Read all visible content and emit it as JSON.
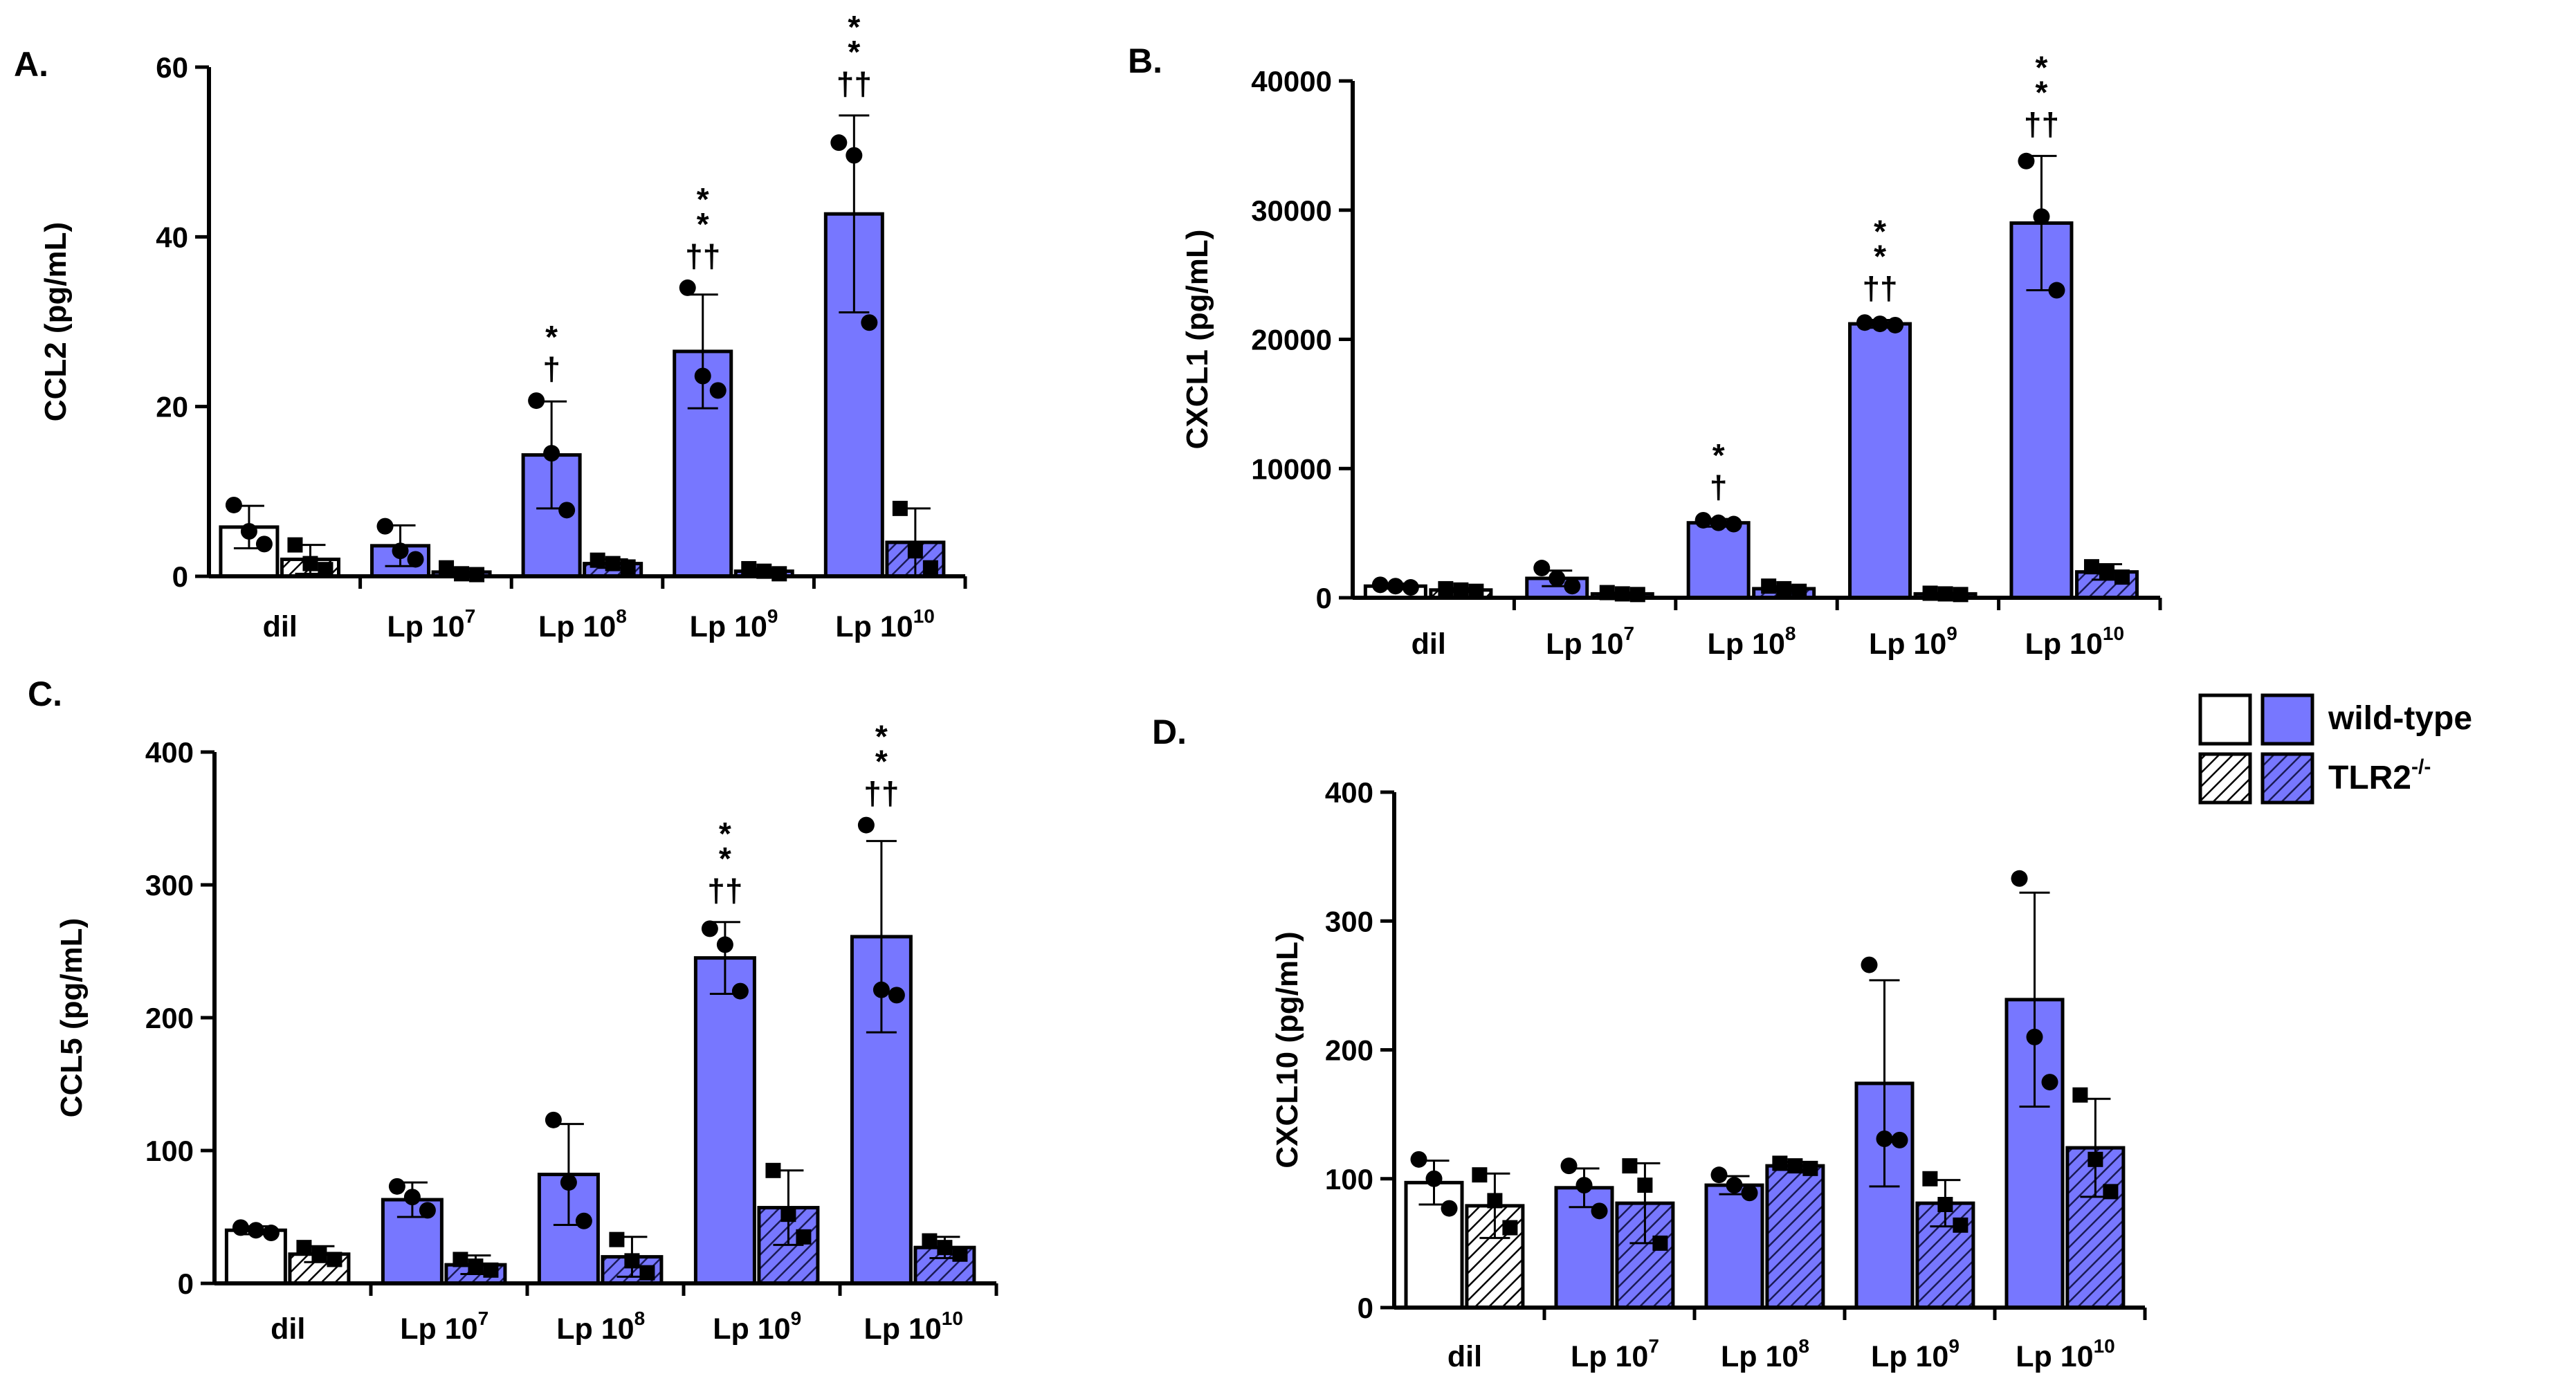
{
  "colors": {
    "wild_type_fill": "#7777ff",
    "white_fill": "#ffffff",
    "stroke": "#000000"
  },
  "legend": {
    "wild_type_label": "wild-type",
    "tlr2_label_base": "TLR2",
    "tlr2_label_sup": "-/-"
  },
  "chart_data": [
    {
      "panel": "A.",
      "type": "bar",
      "ylabel": "CCL2 (pg/mL)",
      "ylim": [
        0,
        60
      ],
      "yticks": [
        0,
        20,
        40,
        60
      ],
      "categories": [
        {
          "base": "dil",
          "sup": ""
        },
        {
          "base": "Lp 10",
          "sup": "7"
        },
        {
          "base": "Lp 10",
          "sup": "8"
        },
        {
          "base": "Lp 10",
          "sup": "9"
        },
        {
          "base": "Lp 10",
          "sup": "10"
        }
      ],
      "series": [
        {
          "name": "wild-type",
          "values": [
            5.8,
            3.6,
            14.3,
            26.5,
            42.7
          ],
          "sd": [
            2.5,
            2.4,
            6.3,
            6.7,
            11.6
          ],
          "points": [
            [
              8.4,
              5.3,
              3.8
            ],
            [
              5.9,
              3.0,
              2.0
            ],
            [
              20.7,
              14.5,
              7.8
            ],
            [
              34.0,
              23.6,
              21.9
            ],
            [
              51.1,
              49.6,
              29.9
            ]
          ]
        },
        {
          "name": "TLR2-/-",
          "values": [
            2.0,
            0.5,
            1.5,
            0.6,
            4.0
          ],
          "sd": [
            1.7,
            0.4,
            0.5,
            0.3,
            4.0
          ],
          "points": [
            [
              3.7,
              1.5,
              0.8
            ],
            [
              1.0,
              0.3,
              0.2
            ],
            [
              1.9,
              1.5,
              1.1
            ],
            [
              0.9,
              0.6,
              0.3
            ],
            [
              8.0,
              3.0,
              1.0
            ]
          ]
        }
      ],
      "annotations": [
        {
          "category": 2,
          "lines": [
            "*",
            "†"
          ]
        },
        {
          "category": 3,
          "lines": [
            "*",
            "*",
            "††"
          ]
        },
        {
          "category": 4,
          "lines": [
            "*",
            "*",
            "††"
          ]
        }
      ]
    },
    {
      "panel": "B.",
      "type": "bar",
      "ylabel": "CXCL1 (pg/mL)",
      "ylim": [
        0,
        40000
      ],
      "yticks": [
        0,
        10000,
        20000,
        30000,
        40000
      ],
      "categories": [
        {
          "base": "dil",
          "sup": ""
        },
        {
          "base": "Lp 10",
          "sup": "7"
        },
        {
          "base": "Lp 10",
          "sup": "8"
        },
        {
          "base": "Lp 10",
          "sup": "9"
        },
        {
          "base": "Lp 10",
          "sup": "10"
        }
      ],
      "series": [
        {
          "name": "wild-type",
          "values": [
            900,
            1500,
            5800,
            21200,
            29000
          ],
          "sd": [
            200,
            600,
            300,
            300,
            5200
          ],
          "points": [
            [
              1000,
              900,
              800
            ],
            [
              2300,
              1500,
              900
            ],
            [
              6000,
              5800,
              5700
            ],
            [
              21300,
              21200,
              21100
            ],
            [
              33800,
              29500,
              23800
            ]
          ]
        },
        {
          "name": "TLR2-/-",
          "values": [
            600,
            300,
            700,
            300,
            2000
          ],
          "sd": [
            150,
            100,
            200,
            80,
            600
          ],
          "points": [
            [
              700,
              600,
              500
            ],
            [
              400,
              300,
              250
            ],
            [
              900,
              700,
              500
            ],
            [
              350,
              300,
              250
            ],
            [
              2400,
              2000,
              1600
            ]
          ]
        }
      ],
      "annotations": [
        {
          "category": 2,
          "lines": [
            "*",
            "†"
          ]
        },
        {
          "category": 3,
          "lines": [
            "*",
            "*",
            "††"
          ]
        },
        {
          "category": 4,
          "lines": [
            "*",
            "*",
            "††"
          ]
        }
      ]
    },
    {
      "panel": "C.",
      "type": "bar",
      "ylabel": "CCL5 (pg/mL)",
      "ylim": [
        0,
        400
      ],
      "yticks": [
        0,
        100,
        200,
        300,
        400
      ],
      "categories": [
        {
          "base": "dil",
          "sup": ""
        },
        {
          "base": "Lp 10",
          "sup": "7"
        },
        {
          "base": "Lp 10",
          "sup": "8"
        },
        {
          "base": "Lp 10",
          "sup": "9"
        },
        {
          "base": "Lp 10",
          "sup": "10"
        }
      ],
      "series": [
        {
          "name": "wild-type",
          "values": [
            40,
            63,
            82,
            245,
            261
          ],
          "sd": [
            3,
            13,
            38,
            27,
            72
          ],
          "points": [
            [
              42,
              40,
              38
            ],
            [
              73,
              65,
              55
            ],
            [
              123,
              76,
              47
            ],
            [
              267,
              255,
              220
            ],
            [
              345,
              221,
              217
            ]
          ]
        },
        {
          "name": "TLR2-/-",
          "values": [
            22,
            14,
            20,
            57,
            27
          ],
          "sd": [
            6,
            7,
            15,
            28,
            8
          ],
          "points": [
            [
              27,
              22,
              18
            ],
            [
              18,
              13,
              10
            ],
            [
              33,
              17,
              8
            ],
            [
              85,
              52,
              35
            ],
            [
              32,
              27,
              22
            ]
          ]
        }
      ],
      "annotations": [
        {
          "category": 3,
          "lines": [
            "*",
            "*",
            "††"
          ]
        },
        {
          "category": 4,
          "lines": [
            "*",
            "*",
            "††"
          ]
        }
      ]
    },
    {
      "panel": "D.",
      "type": "bar",
      "ylabel": "CXCL10 (pg/mL)",
      "ylim": [
        0,
        400
      ],
      "yticks": [
        0,
        100,
        200,
        300,
        400
      ],
      "categories": [
        {
          "base": "dil",
          "sup": ""
        },
        {
          "base": "Lp 10",
          "sup": "7"
        },
        {
          "base": "Lp 10",
          "sup": "8"
        },
        {
          "base": "Lp 10",
          "sup": "9"
        },
        {
          "base": "Lp 10",
          "sup": "10"
        }
      ],
      "series": [
        {
          "name": "wild-type",
          "values": [
            97,
            93,
            95,
            174,
            239
          ],
          "sd": [
            17,
            15,
            7,
            80,
            83
          ],
          "points": [
            [
              115,
              100,
              77
            ],
            [
              110,
              95,
              75
            ],
            [
              103,
              95,
              89
            ],
            [
              266,
              131,
              130
            ],
            [
              333,
              210,
              175
            ]
          ]
        },
        {
          "name": "TLR2-/-",
          "values": [
            79,
            81,
            110,
            81,
            124
          ],
          "sd": [
            25,
            31,
            3,
            18,
            38
          ],
          "points": [
            [
              103,
              83,
              62
            ],
            [
              110,
              95,
              50
            ],
            [
              112,
              110,
              108
            ],
            [
              100,
              80,
              64
            ],
            [
              165,
              115,
              90
            ]
          ]
        }
      ],
      "annotations": []
    }
  ]
}
